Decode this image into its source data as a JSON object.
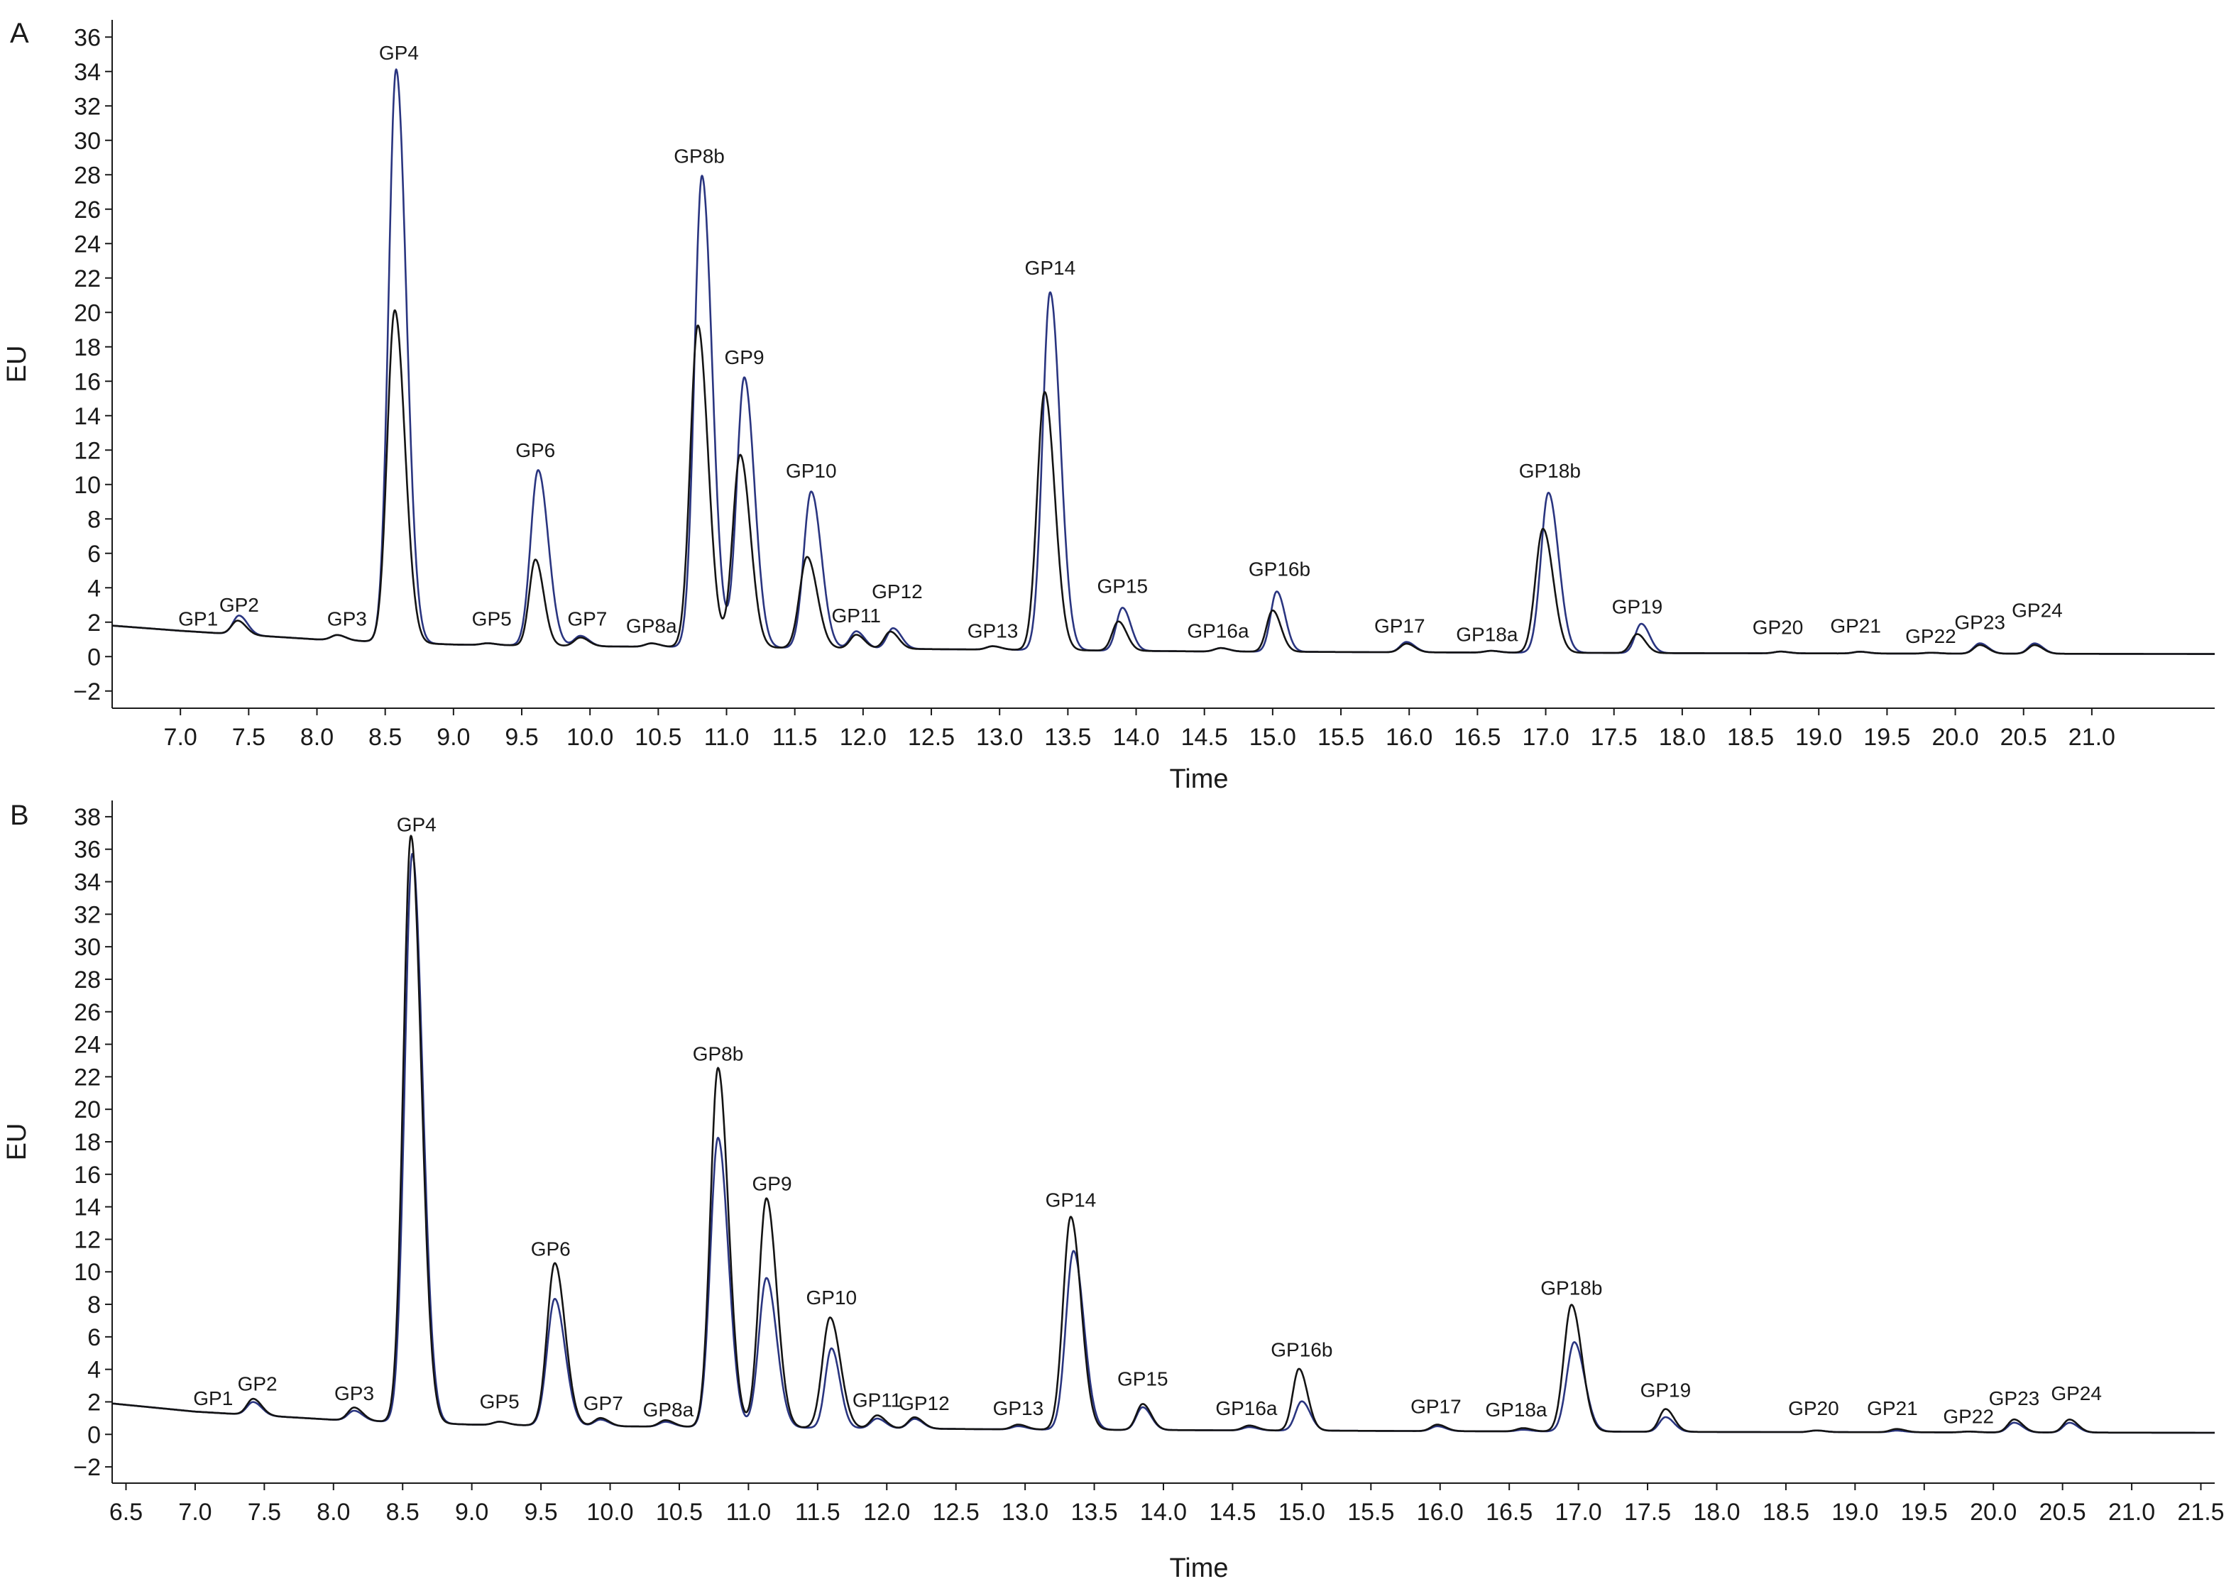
{
  "chart_data": [
    {
      "panel_label": "A",
      "type": "line",
      "xlabel": "Time",
      "ylabel": "EU",
      "xlim": [
        6.5,
        21.9
      ],
      "ylim": [
        -3,
        37
      ],
      "xticks": [
        "7.0",
        "7.5",
        "8.0",
        "8.5",
        "9.0",
        "9.5",
        "10.0",
        "10.5",
        "11.0",
        "11.5",
        "12.0",
        "12.5",
        "13.0",
        "13.5",
        "14.0",
        "14.5",
        "15.0",
        "15.5",
        "16.0",
        "16.5",
        "17.0",
        "17.5",
        "18.0",
        "18.5",
        "19.0",
        "19.5",
        "20.0",
        "20.5",
        "21.0"
      ],
      "yticks": [
        "-2",
        "0",
        "2",
        "4",
        "6",
        "8",
        "10",
        "12",
        "14",
        "16",
        "18",
        "20",
        "22",
        "24",
        "26",
        "28",
        "30",
        "32",
        "34",
        "36"
      ],
      "grid": false,
      "baseline": {
        "x": [
          6.5,
          7.0,
          8.0,
          9.0,
          10.0,
          11.5,
          13.0,
          14.5,
          16.0,
          18.0,
          21.9
        ],
        "y": [
          1.8,
          1.5,
          1.0,
          0.7,
          0.6,
          0.5,
          0.4,
          0.3,
          0.25,
          0.2,
          0.15
        ]
      },
      "series": [
        {
          "color": "#2a3580",
          "peaks": [
            {
              "label": "GP1",
              "x": 7.2,
              "y": 0.0
            },
            {
              "label": "GP2",
              "x": 7.43,
              "y": 1.1
            },
            {
              "label": "GP3",
              "x": 8.15,
              "y": 0.3
            },
            {
              "label": "GP4",
              "x": 8.58,
              "y": 33.3
            },
            {
              "label": "GP5",
              "x": 9.25,
              "y": 0.1
            },
            {
              "label": "GP6",
              "x": 9.62,
              "y": 10.2
            },
            {
              "label": "GP7",
              "x": 9.93,
              "y": 0.6
            },
            {
              "label": "GP8a",
              "x": 10.45,
              "y": 0.2
            },
            {
              "label": "GP8b",
              "x": 10.82,
              "y": 27.4
            },
            {
              "label": "GP9",
              "x": 11.13,
              "y": 15.7
            },
            {
              "label": "GP10",
              "x": 11.62,
              "y": 9.1
            },
            {
              "label": "GP11",
              "x": 11.95,
              "y": 1.0
            },
            {
              "label": "GP12",
              "x": 12.22,
              "y": 1.2
            },
            {
              "label": "GP13",
              "x": 12.95,
              "y": 0.2
            },
            {
              "label": "GP14",
              "x": 13.37,
              "y": 20.8
            },
            {
              "label": "GP15",
              "x": 13.9,
              "y": 2.5
            },
            {
              "label": "GP16a",
              "x": 14.62,
              "y": 0.2
            },
            {
              "label": "GP16b",
              "x": 15.03,
              "y": 3.5
            },
            {
              "label": "GP17",
              "x": 15.98,
              "y": 0.6
            },
            {
              "label": "GP18a",
              "x": 16.6,
              "y": 0.1
            },
            {
              "label": "GP18b",
              "x": 17.02,
              "y": 9.3
            },
            {
              "label": "GP19",
              "x": 17.7,
              "y": 1.7
            },
            {
              "label": "GP20",
              "x": 18.72,
              "y": 0.1
            },
            {
              "label": "GP21",
              "x": 19.3,
              "y": 0.1
            },
            {
              "label": "GP22",
              "x": 19.82,
              "y": 0.05
            },
            {
              "label": "GP23",
              "x": 20.18,
              "y": 0.6
            },
            {
              "label": "GP24",
              "x": 20.58,
              "y": 0.6
            }
          ]
        },
        {
          "color": "#141414",
          "peaks": [
            {
              "label": "GP1",
              "x": 7.2,
              "y": 0.0
            },
            {
              "label": "GP2",
              "x": 7.42,
              "y": 0.8
            },
            {
              "label": "GP3",
              "x": 8.15,
              "y": 0.3
            },
            {
              "label": "GP4",
              "x": 8.57,
              "y": 19.3
            },
            {
              "label": "GP5",
              "x": 9.25,
              "y": 0.1
            },
            {
              "label": "GP6",
              "x": 9.6,
              "y": 5.0
            },
            {
              "label": "GP7",
              "x": 9.93,
              "y": 0.5
            },
            {
              "label": "GP8a",
              "x": 10.45,
              "y": 0.2
            },
            {
              "label": "GP8b",
              "x": 10.79,
              "y": 18.7
            },
            {
              "label": "GP9",
              "x": 11.1,
              "y": 11.2
            },
            {
              "label": "GP10",
              "x": 11.59,
              "y": 5.3
            },
            {
              "label": "GP11",
              "x": 11.95,
              "y": 0.8
            },
            {
              "label": "GP12",
              "x": 12.2,
              "y": 1.0
            },
            {
              "label": "GP13",
              "x": 12.95,
              "y": 0.2
            },
            {
              "label": "GP14",
              "x": 13.33,
              "y": 15.0
            },
            {
              "label": "GP15",
              "x": 13.87,
              "y": 1.7
            },
            {
              "label": "GP16a",
              "x": 14.62,
              "y": 0.2
            },
            {
              "label": "GP16b",
              "x": 15.0,
              "y": 2.4
            },
            {
              "label": "GP17",
              "x": 15.98,
              "y": 0.5
            },
            {
              "label": "GP18a",
              "x": 16.6,
              "y": 0.1
            },
            {
              "label": "GP18b",
              "x": 16.98,
              "y": 7.2
            },
            {
              "label": "GP19",
              "x": 17.67,
              "y": 1.1
            },
            {
              "label": "GP20",
              "x": 18.72,
              "y": 0.1
            },
            {
              "label": "GP21",
              "x": 19.3,
              "y": 0.1
            },
            {
              "label": "GP22",
              "x": 19.82,
              "y": 0.05
            },
            {
              "label": "GP23",
              "x": 20.18,
              "y": 0.5
            },
            {
              "label": "GP24",
              "x": 20.58,
              "y": 0.5
            }
          ]
        }
      ],
      "annotations": [
        {
          "text": "GP1",
          "x": 7.13,
          "y": 1.8
        },
        {
          "text": "GP2",
          "x": 7.43,
          "y": 2.6
        },
        {
          "text": "GP3",
          "x": 8.22,
          "y": 1.8
        },
        {
          "text": "GP4",
          "x": 8.6,
          "y": 34.7
        },
        {
          "text": "GP5",
          "x": 9.28,
          "y": 1.8
        },
        {
          "text": "GP6",
          "x": 9.6,
          "y": 11.6
        },
        {
          "text": "GP7",
          "x": 9.98,
          "y": 1.8
        },
        {
          "text": "GP8a",
          "x": 10.45,
          "y": 1.4
        },
        {
          "text": "GP8b",
          "x": 10.8,
          "y": 28.7
        },
        {
          "text": "GP9",
          "x": 11.13,
          "y": 17.0
        },
        {
          "text": "GP10",
          "x": 11.62,
          "y": 10.4
        },
        {
          "text": "GP11",
          "x": 11.95,
          "y": 2.0
        },
        {
          "text": "GP12",
          "x": 12.25,
          "y": 3.4
        },
        {
          "text": "GP13",
          "x": 12.95,
          "y": 1.1
        },
        {
          "text": "GP14",
          "x": 13.37,
          "y": 22.2
        },
        {
          "text": "GP15",
          "x": 13.9,
          "y": 3.7
        },
        {
          "text": "GP16a",
          "x": 14.6,
          "y": 1.1
        },
        {
          "text": "GP16b",
          "x": 15.05,
          "y": 4.7
        },
        {
          "text": "GP17",
          "x": 15.93,
          "y": 1.4
        },
        {
          "text": "GP18a",
          "x": 16.57,
          "y": 0.9
        },
        {
          "text": "GP18b",
          "x": 17.03,
          "y": 10.4
        },
        {
          "text": "GP19",
          "x": 17.67,
          "y": 2.5
        },
        {
          "text": "GP20",
          "x": 18.7,
          "y": 1.3
        },
        {
          "text": "GP21",
          "x": 19.27,
          "y": 1.4
        },
        {
          "text": "GP22",
          "x": 19.82,
          "y": 0.8
        },
        {
          "text": "GP23",
          "x": 20.18,
          "y": 1.6
        },
        {
          "text": "GP24",
          "x": 20.6,
          "y": 2.3
        }
      ]
    },
    {
      "panel_label": "B",
      "type": "line",
      "xlabel": "Time",
      "ylabel": "EU",
      "xlim": [
        6.4,
        21.6
      ],
      "ylim": [
        -3,
        39
      ],
      "xticks": [
        "6.5",
        "7.0",
        "7.5",
        "8.0",
        "8.5",
        "9.0",
        "9.5",
        "10.0",
        "10.5",
        "11.0",
        "11.5",
        "12.0",
        "12.5",
        "13.0",
        "13.5",
        "14.0",
        "14.5",
        "15.0",
        "15.5",
        "16.0",
        "16.5",
        "17.0",
        "17.5",
        "18.0",
        "18.5",
        "19.0",
        "19.5",
        "20.0",
        "20.5",
        "21.0",
        "21.5"
      ],
      "yticks": [
        "-2",
        "0",
        "2",
        "4",
        "6",
        "8",
        "10",
        "12",
        "14",
        "16",
        "18",
        "20",
        "22",
        "24",
        "26",
        "28",
        "30",
        "32",
        "34",
        "36",
        "38"
      ],
      "grid": false,
      "baseline": {
        "x": [
          6.4,
          7.0,
          8.0,
          9.0,
          10.0,
          11.5,
          13.0,
          14.5,
          16.0,
          18.0,
          21.6
        ],
        "y": [
          1.9,
          1.4,
          0.9,
          0.6,
          0.5,
          0.4,
          0.3,
          0.25,
          0.2,
          0.15,
          0.1
        ]
      },
      "series": [
        {
          "color": "#2a3580",
          "peaks": [
            {
              "label": "GP1",
              "x": 7.2,
              "y": 0.0
            },
            {
              "label": "GP2",
              "x": 7.42,
              "y": 0.8
            },
            {
              "label": "GP3",
              "x": 8.15,
              "y": 0.6
            },
            {
              "label": "GP4",
              "x": 8.57,
              "y": 35.0
            },
            {
              "label": "GP5",
              "x": 9.2,
              "y": 0.2
            },
            {
              "label": "GP6",
              "x": 9.6,
              "y": 7.8
            },
            {
              "label": "GP7",
              "x": 9.93,
              "y": 0.4
            },
            {
              "label": "GP8a",
              "x": 10.4,
              "y": 0.3
            },
            {
              "label": "GP8b",
              "x": 10.78,
              "y": 17.8
            },
            {
              "label": "GP9",
              "x": 11.13,
              "y": 9.2
            },
            {
              "label": "GP10",
              "x": 11.6,
              "y": 4.9
            },
            {
              "label": "GP11",
              "x": 11.93,
              "y": 0.6
            },
            {
              "label": "GP12",
              "x": 12.2,
              "y": 0.6
            },
            {
              "label": "GP13",
              "x": 12.95,
              "y": 0.2
            },
            {
              "label": "GP14",
              "x": 13.35,
              "y": 11.0
            },
            {
              "label": "GP15",
              "x": 13.85,
              "y": 1.4
            },
            {
              "label": "GP16a",
              "x": 14.62,
              "y": 0.2
            },
            {
              "label": "GP16b",
              "x": 15.0,
              "y": 1.8
            },
            {
              "label": "GP17",
              "x": 15.98,
              "y": 0.3
            },
            {
              "label": "GP18a",
              "x": 16.6,
              "y": 0.1
            },
            {
              "label": "GP18b",
              "x": 16.97,
              "y": 5.5
            },
            {
              "label": "GP19",
              "x": 17.63,
              "y": 0.9
            },
            {
              "label": "GP20",
              "x": 18.72,
              "y": 0.1
            },
            {
              "label": "GP21",
              "x": 19.3,
              "y": 0.1
            },
            {
              "label": "GP22",
              "x": 19.82,
              "y": 0.05
            },
            {
              "label": "GP23",
              "x": 20.15,
              "y": 0.6
            },
            {
              "label": "GP24",
              "x": 20.55,
              "y": 0.6
            }
          ]
        },
        {
          "color": "#141414",
          "peaks": [
            {
              "label": "GP1",
              "x": 7.2,
              "y": 0.0
            },
            {
              "label": "GP2",
              "x": 7.42,
              "y": 1.0
            },
            {
              "label": "GP3",
              "x": 8.15,
              "y": 0.8
            },
            {
              "label": "GP4",
              "x": 8.56,
              "y": 36.1
            },
            {
              "label": "GP5",
              "x": 9.2,
              "y": 0.2
            },
            {
              "label": "GP6",
              "x": 9.6,
              "y": 10.0
            },
            {
              "label": "GP7",
              "x": 9.93,
              "y": 0.5
            },
            {
              "label": "GP8a",
              "x": 10.4,
              "y": 0.4
            },
            {
              "label": "GP8b",
              "x": 10.78,
              "y": 22.1
            },
            {
              "label": "GP9",
              "x": 11.13,
              "y": 14.1
            },
            {
              "label": "GP10",
              "x": 11.59,
              "y": 6.8
            },
            {
              "label": "GP11",
              "x": 11.93,
              "y": 0.8
            },
            {
              "label": "GP12",
              "x": 12.2,
              "y": 0.7
            },
            {
              "label": "GP13",
              "x": 12.95,
              "y": 0.3
            },
            {
              "label": "GP14",
              "x": 13.33,
              "y": 13.1
            },
            {
              "label": "GP15",
              "x": 13.85,
              "y": 1.6
            },
            {
              "label": "GP16a",
              "x": 14.62,
              "y": 0.3
            },
            {
              "label": "GP16b",
              "x": 14.98,
              "y": 3.8
            },
            {
              "label": "GP17",
              "x": 15.98,
              "y": 0.4
            },
            {
              "label": "GP18a",
              "x": 16.6,
              "y": 0.2
            },
            {
              "label": "GP18b",
              "x": 16.95,
              "y": 7.8
            },
            {
              "label": "GP19",
              "x": 17.63,
              "y": 1.4
            },
            {
              "label": "GP20",
              "x": 18.72,
              "y": 0.1
            },
            {
              "label": "GP21",
              "x": 19.3,
              "y": 0.2
            },
            {
              "label": "GP22",
              "x": 19.82,
              "y": 0.05
            },
            {
              "label": "GP23",
              "x": 20.15,
              "y": 0.8
            },
            {
              "label": "GP24",
              "x": 20.55,
              "y": 0.8
            }
          ]
        }
      ],
      "annotations": [
        {
          "text": "GP1",
          "x": 7.13,
          "y": 1.8
        },
        {
          "text": "GP2",
          "x": 7.45,
          "y": 2.7
        },
        {
          "text": "GP3",
          "x": 8.15,
          "y": 2.1
        },
        {
          "text": "GP4",
          "x": 8.6,
          "y": 37.1
        },
        {
          "text": "GP5",
          "x": 9.2,
          "y": 1.6
        },
        {
          "text": "GP6",
          "x": 9.57,
          "y": 11.0
        },
        {
          "text": "GP7",
          "x": 9.95,
          "y": 1.5
        },
        {
          "text": "GP8a",
          "x": 10.42,
          "y": 1.1
        },
        {
          "text": "GP8b",
          "x": 10.78,
          "y": 23.0
        },
        {
          "text": "GP9",
          "x": 11.17,
          "y": 15.0
        },
        {
          "text": "GP10",
          "x": 11.6,
          "y": 8.0
        },
        {
          "text": "GP11",
          "x": 11.93,
          "y": 1.7
        },
        {
          "text": "GP12",
          "x": 12.27,
          "y": 1.5
        },
        {
          "text": "GP13",
          "x": 12.95,
          "y": 1.2
        },
        {
          "text": "GP14",
          "x": 13.33,
          "y": 14.0
        },
        {
          "text": "GP15",
          "x": 13.85,
          "y": 3.0
        },
        {
          "text": "GP16a",
          "x": 14.6,
          "y": 1.2
        },
        {
          "text": "GP16b",
          "x": 15.0,
          "y": 4.8
        },
        {
          "text": "GP17",
          "x": 15.97,
          "y": 1.3
        },
        {
          "text": "GP18a",
          "x": 16.55,
          "y": 1.1
        },
        {
          "text": "GP18b",
          "x": 16.95,
          "y": 8.6
        },
        {
          "text": "GP19",
          "x": 17.63,
          "y": 2.3
        },
        {
          "text": "GP20",
          "x": 18.7,
          "y": 1.2
        },
        {
          "text": "GP21",
          "x": 19.27,
          "y": 1.2
        },
        {
          "text": "GP22",
          "x": 19.82,
          "y": 0.7
        },
        {
          "text": "GP23",
          "x": 20.15,
          "y": 1.8
        },
        {
          "text": "GP24",
          "x": 20.6,
          "y": 2.1
        }
      ]
    }
  ]
}
